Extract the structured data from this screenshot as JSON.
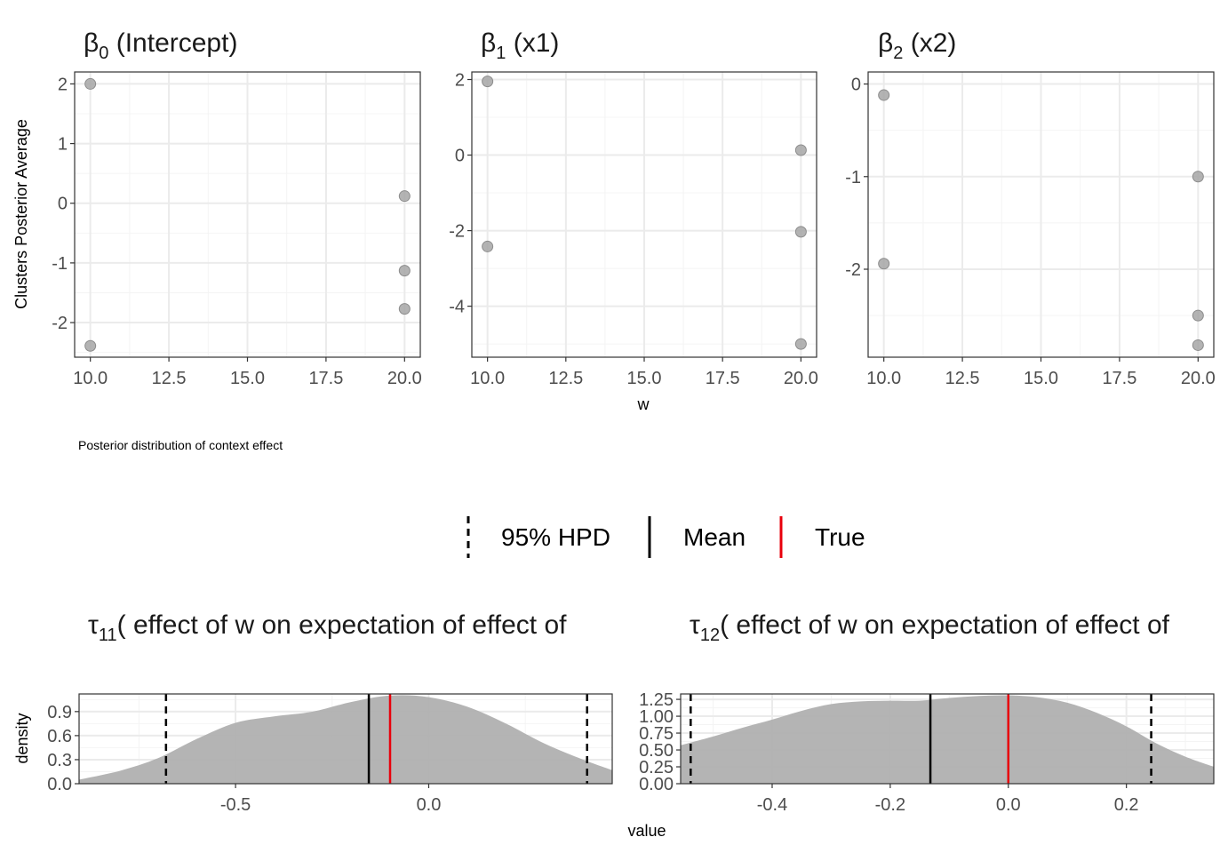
{
  "caption": "Posterior distribution of context effect",
  "legend": {
    "items": [
      {
        "label": "95% HPD",
        "color": "#000000",
        "style": "dashed"
      },
      {
        "label": "Mean",
        "color": "#000000",
        "style": "solid"
      },
      {
        "label": "True",
        "color": "#e8000b",
        "style": "solid"
      }
    ]
  },
  "colors": {
    "points": "#a6a6a6",
    "density_fill": "#b0b0b0",
    "grid_major": "#ebebeb",
    "grid_minor": "#f4f4f4",
    "true_line": "#e8000b",
    "mean_line": "#000000"
  },
  "chart_data": [
    {
      "type": "scatter",
      "title_symbol": "β",
      "title_subscript": "0",
      "title_text": " (Intercept)",
      "ylabel": "Clusters Posterior Average",
      "xlabel": "",
      "xlim": [
        9.5,
        20.5
      ],
      "ylim": [
        -2.58,
        2.2
      ],
      "xticks": [
        10.0,
        12.5,
        15.0,
        17.5,
        20.0
      ],
      "xtick_labels": [
        "10.0",
        "12.5",
        "15.0",
        "17.5",
        "20.0"
      ],
      "yticks": [
        2,
        1,
        0,
        -1,
        -2
      ],
      "ytick_labels": [
        "2",
        "1",
        "0",
        "-1",
        "-2"
      ],
      "points": [
        {
          "x": 10,
          "y": 2.0
        },
        {
          "x": 10,
          "y": -2.39
        },
        {
          "x": 20,
          "y": 0.12
        },
        {
          "x": 20,
          "y": -1.13
        },
        {
          "x": 20,
          "y": -1.77
        }
      ]
    },
    {
      "type": "scatter",
      "title_symbol": "β",
      "title_subscript": "1",
      "title_text": " (x1)",
      "ylabel": "",
      "xlabel": "w",
      "xlim": [
        9.5,
        20.5
      ],
      "ylim": [
        -5.35,
        2.2
      ],
      "xticks": [
        10.0,
        12.5,
        15.0,
        17.5,
        20.0
      ],
      "xtick_labels": [
        "10.0",
        "12.5",
        "15.0",
        "17.5",
        "20.0"
      ],
      "yticks": [
        2,
        0,
        -2,
        -4
      ],
      "ytick_labels": [
        "2",
        "0",
        "-2",
        "-4"
      ],
      "points": [
        {
          "x": 10,
          "y": 1.95
        },
        {
          "x": 10,
          "y": -2.42
        },
        {
          "x": 20,
          "y": 0.13
        },
        {
          "x": 20,
          "y": -2.03
        },
        {
          "x": 20,
          "y": -5.0
        }
      ]
    },
    {
      "type": "scatter",
      "title_symbol": "β",
      "title_subscript": "2",
      "title_text": " (x2)",
      "ylabel": "",
      "xlabel": "",
      "xlim": [
        9.5,
        20.5
      ],
      "ylim": [
        -2.95,
        0.13
      ],
      "xticks": [
        10.0,
        12.5,
        15.0,
        17.5,
        20.0
      ],
      "xtick_labels": [
        "10.0",
        "12.5",
        "15.0",
        "17.5",
        "20.0"
      ],
      "yticks": [
        0,
        -1,
        -2
      ],
      "ytick_labels": [
        "0",
        "-1",
        "-2"
      ],
      "points": [
        {
          "x": 10,
          "y": -0.12
        },
        {
          "x": 10,
          "y": -1.94
        },
        {
          "x": 20,
          "y": -1.0
        },
        {
          "x": 20,
          "y": -2.5
        },
        {
          "x": 20,
          "y": -2.82
        }
      ]
    },
    {
      "type": "area",
      "title_symbol": "τ",
      "title_subscript": "11",
      "title_text": "( effect of w on expectation of effect of",
      "ylabel": "density",
      "xlabel": "",
      "xlim": [
        -0.905,
        0.475
      ],
      "ylim": [
        0,
        1.12
      ],
      "xticks": [
        -0.5,
        0.0
      ],
      "xtick_labels": [
        "-0.5",
        "0.0"
      ],
      "yticks": [
        0.0,
        0.3,
        0.6,
        0.9
      ],
      "ytick_labels": [
        "0.0",
        "0.3",
        "0.6",
        "0.9"
      ],
      "density": {
        "x": [
          -0.905,
          -0.8,
          -0.7,
          -0.6,
          -0.5,
          -0.4,
          -0.3,
          -0.2,
          -0.1,
          0.0,
          0.1,
          0.2,
          0.3,
          0.4,
          0.475
        ],
        "y": [
          0.05,
          0.16,
          0.32,
          0.56,
          0.76,
          0.84,
          0.9,
          1.02,
          1.1,
          1.08,
          0.96,
          0.75,
          0.5,
          0.3,
          0.17
        ]
      },
      "hpd": [
        -0.68,
        0.41
      ],
      "mean": -0.155,
      "true": -0.1
    },
    {
      "type": "area",
      "title_symbol": "τ",
      "title_subscript": "12",
      "title_text": "( effect of w on expectation of effect of",
      "ylabel": "",
      "xlabel": "value",
      "xlim": [
        -0.555,
        0.348
      ],
      "ylim": [
        0,
        1.33
      ],
      "xticks": [
        -0.4,
        -0.2,
        0.0,
        0.2
      ],
      "xtick_labels": [
        "-0.4",
        "-0.2",
        "0.0",
        "0.2"
      ],
      "yticks": [
        0.0,
        0.25,
        0.5,
        0.75,
        1.0,
        1.25
      ],
      "ytick_labels": [
        "0.00",
        "0.25",
        "0.50",
        "0.75",
        "1.00",
        "1.25"
      ],
      "density": {
        "x": [
          -0.555,
          -0.5,
          -0.45,
          -0.4,
          -0.35,
          -0.3,
          -0.25,
          -0.2,
          -0.15,
          -0.1,
          -0.05,
          0.0,
          0.05,
          0.1,
          0.15,
          0.2,
          0.25,
          0.3,
          0.348
        ],
        "y": [
          0.57,
          0.7,
          0.83,
          0.95,
          1.08,
          1.18,
          1.22,
          1.23,
          1.23,
          1.27,
          1.3,
          1.31,
          1.28,
          1.2,
          1.05,
          0.85,
          0.6,
          0.4,
          0.25
        ]
      },
      "hpd": [
        -0.538,
        0.242
      ],
      "mean": -0.132,
      "true": 0.0
    }
  ]
}
